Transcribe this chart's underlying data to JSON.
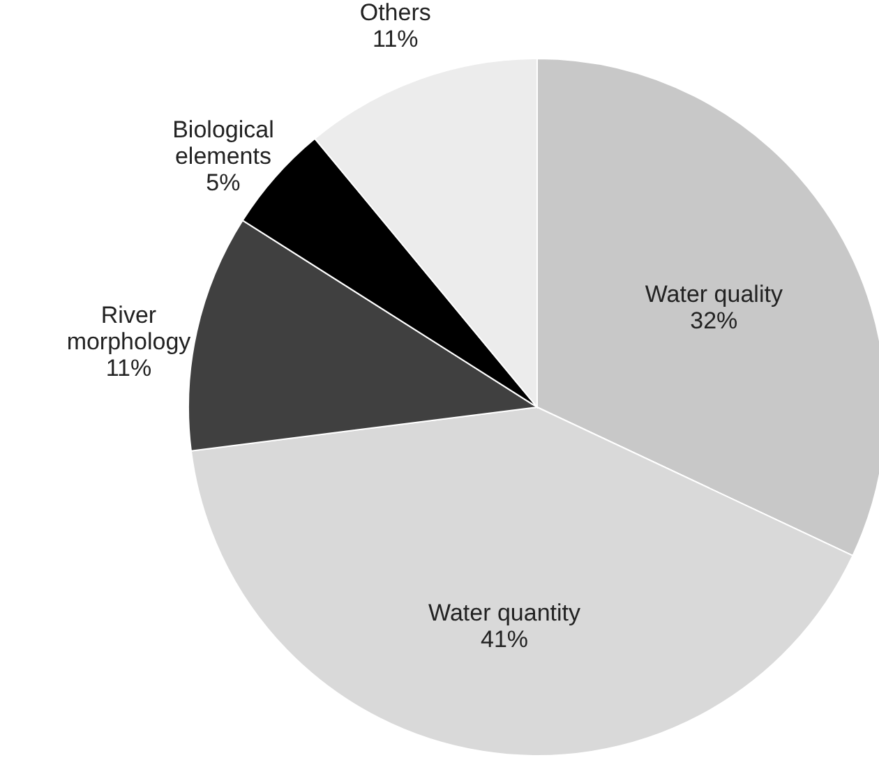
{
  "chart_data": {
    "type": "pie",
    "categories": [
      "Water quality",
      "Water quantity",
      "River morphology",
      "Biological elements",
      "Others"
    ],
    "values": [
      32,
      41,
      11,
      5,
      11
    ],
    "value_labels": [
      "32%",
      "41%",
      "11%",
      "5%",
      "11%"
    ],
    "colors": [
      "#c8c8c8",
      "#d9d9d9",
      "#404040",
      "#000000",
      "#ececec"
    ]
  }
}
